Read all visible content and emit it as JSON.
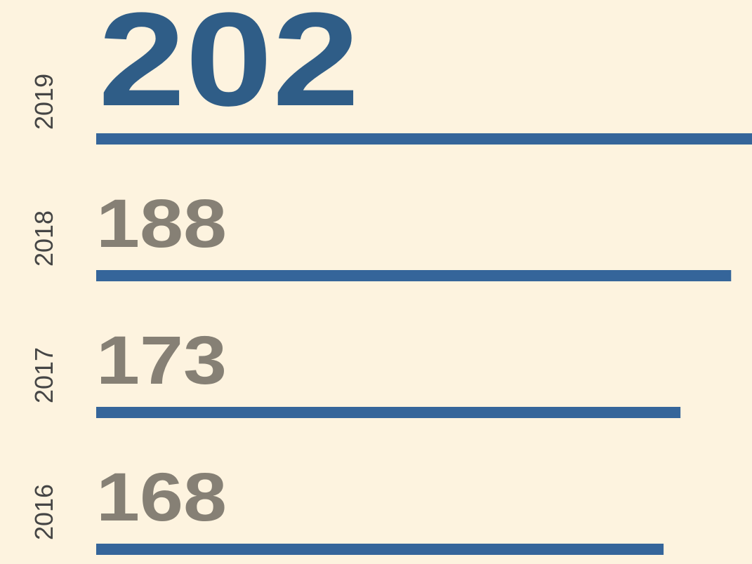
{
  "chart_data": {
    "type": "bar",
    "categories": [
      "2019",
      "2018",
      "2017",
      "2016"
    ],
    "values": [
      202,
      188,
      173,
      168
    ],
    "color": "#35659a",
    "label_colors": [
      "#2f5d87",
      "#868075",
      "#868075",
      "#868075"
    ],
    "background": "#fdf3df"
  }
}
